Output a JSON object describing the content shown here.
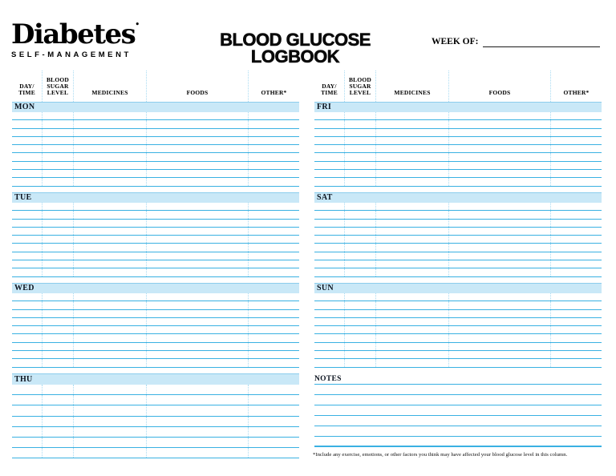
{
  "logo": {
    "name": "Diabetes",
    "mark": "•",
    "tagline": "SELF-MANAGEMENT"
  },
  "header": {
    "title_line1": "BLOOD GLUCOSE",
    "title_line2": "LOGBOOK",
    "week_of_label": "WEEK OF:"
  },
  "table": {
    "columns": [
      {
        "l1": "DAY/",
        "l2": "TIME"
      },
      {
        "l1": "BLOOD",
        "l2": "SUGAR",
        "l3": "LEVEL"
      },
      {
        "l1": "MEDICINES"
      },
      {
        "l1": "FOODS"
      },
      {
        "l1": "OTHER*"
      }
    ]
  },
  "sections": {
    "left": [
      {
        "day": "MON",
        "rows": 9
      },
      {
        "day": "TUE",
        "rows": 9
      },
      {
        "day": "WED",
        "rows": 9
      },
      {
        "day": "THU",
        "rows": 7
      }
    ],
    "right": [
      {
        "day": "FRI",
        "rows": 9
      },
      {
        "day": "SAT",
        "rows": 9
      },
      {
        "day": "SUN",
        "rows": 9
      }
    ]
  },
  "notes": {
    "label": "NOTES",
    "rows": 6
  },
  "footnote": {
    "text": "*Include any exercise, emotions, or other factors you think may have affected your blood glucose level in this column."
  },
  "colors": {
    "line": "#3ab1e2",
    "band_fill": "#c9e8f7",
    "dotted_line": "#a9dbf2",
    "text": "#000000"
  }
}
